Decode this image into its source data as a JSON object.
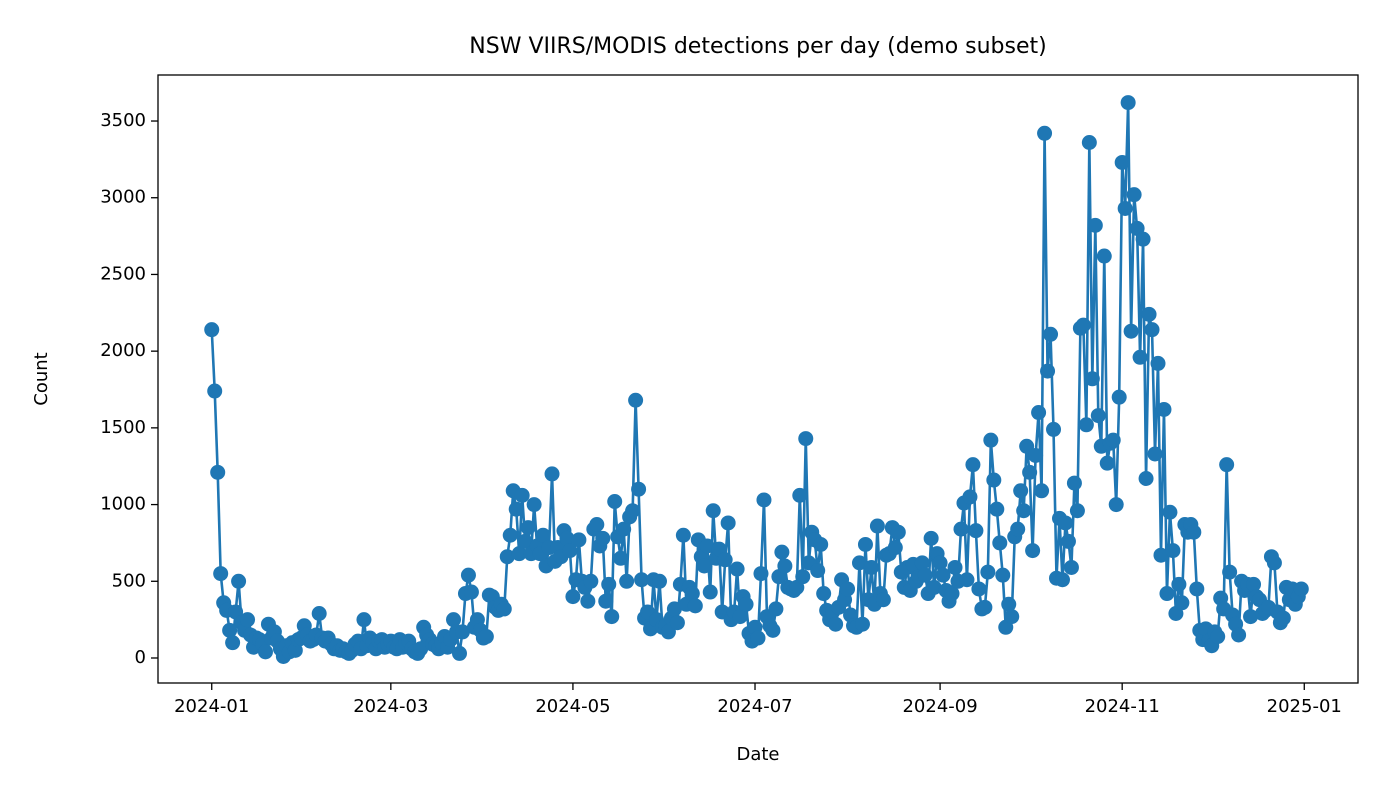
{
  "chart_data": {
    "type": "line",
    "title": "NSW VIIRS/MODIS detections per day (demo subset)",
    "xlabel": "Date",
    "ylabel": "Count",
    "color": "#1f77b4",
    "x": [
      "2024-01-01",
      "2024-01-02",
      "2024-01-03",
      "2024-01-04",
      "2024-01-05",
      "2024-01-06",
      "2024-01-07",
      "2024-01-08",
      "2024-01-09",
      "2024-01-10",
      "2024-01-11",
      "2024-01-12",
      "2024-01-13",
      "2024-01-14",
      "2024-01-15",
      "2024-01-16",
      "2024-01-17",
      "2024-01-18",
      "2024-01-19",
      "2024-01-20",
      "2024-01-21",
      "2024-01-22",
      "2024-01-23",
      "2024-01-24",
      "2024-01-25",
      "2024-01-26",
      "2024-01-27",
      "2024-01-28",
      "2024-01-29",
      "2024-01-30",
      "2024-01-31",
      "2024-02-01",
      "2024-02-02",
      "2024-02-03",
      "2024-02-04",
      "2024-02-05",
      "2024-02-06",
      "2024-02-07",
      "2024-02-08",
      "2024-02-09",
      "2024-02-10",
      "2024-02-11",
      "2024-02-12",
      "2024-02-13",
      "2024-02-14",
      "2024-02-15",
      "2024-02-16",
      "2024-02-17",
      "2024-02-18",
      "2024-02-19",
      "2024-02-20",
      "2024-02-21",
      "2024-02-22",
      "2024-02-23",
      "2024-02-24",
      "2024-02-25",
      "2024-02-26",
      "2024-02-27",
      "2024-02-28",
      "2024-02-29",
      "2024-03-01",
      "2024-03-02",
      "2024-03-03",
      "2024-03-04",
      "2024-03-05",
      "2024-03-06",
      "2024-03-07",
      "2024-03-08",
      "2024-03-09",
      "2024-03-10",
      "2024-03-11",
      "2024-03-12",
      "2024-03-13",
      "2024-03-14",
      "2024-03-15",
      "2024-03-16",
      "2024-03-17",
      "2024-03-18",
      "2024-03-19",
      "2024-03-20",
      "2024-03-21",
      "2024-03-22",
      "2024-03-23",
      "2024-03-24",
      "2024-03-25",
      "2024-03-26",
      "2024-03-27",
      "2024-03-28",
      "2024-03-29",
      "2024-03-30",
      "2024-03-31",
      "2024-04-01",
      "2024-04-02",
      "2024-04-03",
      "2024-04-04",
      "2024-04-05",
      "2024-04-06",
      "2024-04-07",
      "2024-04-08",
      "2024-04-09",
      "2024-04-10",
      "2024-04-11",
      "2024-04-12",
      "2024-04-13",
      "2024-04-14",
      "2024-04-15",
      "2024-04-16",
      "2024-04-17",
      "2024-04-18",
      "2024-04-19",
      "2024-04-20",
      "2024-04-21",
      "2024-04-22",
      "2024-04-23",
      "2024-04-24",
      "2024-04-25",
      "2024-04-26",
      "2024-04-27",
      "2024-04-28",
      "2024-04-29",
      "2024-04-30",
      "2024-05-01",
      "2024-05-02",
      "2024-05-03",
      "2024-05-04",
      "2024-05-05",
      "2024-05-06",
      "2024-05-07",
      "2024-05-08",
      "2024-05-09",
      "2024-05-10",
      "2024-05-11",
      "2024-05-12",
      "2024-05-13",
      "2024-05-14",
      "2024-05-15",
      "2024-05-16",
      "2024-05-17",
      "2024-05-18",
      "2024-05-19",
      "2024-05-20",
      "2024-05-21",
      "2024-05-22",
      "2024-05-23",
      "2024-05-24",
      "2024-05-25",
      "2024-05-26",
      "2024-05-27",
      "2024-05-28",
      "2024-05-29",
      "2024-05-30",
      "2024-05-31",
      "2024-06-01",
      "2024-06-02",
      "2024-06-03",
      "2024-06-04",
      "2024-06-05",
      "2024-06-06",
      "2024-06-07",
      "2024-06-08",
      "2024-06-09",
      "2024-06-10",
      "2024-06-11",
      "2024-06-12",
      "2024-06-13",
      "2024-06-14",
      "2024-06-15",
      "2024-06-16",
      "2024-06-17",
      "2024-06-18",
      "2024-06-19",
      "2024-06-20",
      "2024-06-21",
      "2024-06-22",
      "2024-06-23",
      "2024-06-24",
      "2024-06-25",
      "2024-06-26",
      "2024-06-27",
      "2024-06-28",
      "2024-06-29",
      "2024-06-30",
      "2024-07-01",
      "2024-07-02",
      "2024-07-03",
      "2024-07-04",
      "2024-07-05",
      "2024-07-06",
      "2024-07-07",
      "2024-07-08",
      "2024-07-09",
      "2024-07-10",
      "2024-07-11",
      "2024-07-12",
      "2024-07-13",
      "2024-07-14",
      "2024-07-15",
      "2024-07-16",
      "2024-07-17",
      "2024-07-18",
      "2024-07-19",
      "2024-07-20",
      "2024-07-21",
      "2024-07-22",
      "2024-07-23",
      "2024-07-24",
      "2024-07-25",
      "2024-07-26",
      "2024-07-27",
      "2024-07-28",
      "2024-07-29",
      "2024-07-30",
      "2024-07-31",
      "2024-08-01",
      "2024-08-02",
      "2024-08-03",
      "2024-08-04",
      "2024-08-05",
      "2024-08-06",
      "2024-08-07",
      "2024-08-08",
      "2024-08-09",
      "2024-08-10",
      "2024-08-11",
      "2024-08-12",
      "2024-08-13",
      "2024-08-14",
      "2024-08-15",
      "2024-08-16",
      "2024-08-17",
      "2024-08-18",
      "2024-08-19",
      "2024-08-20",
      "2024-08-21",
      "2024-08-22",
      "2024-08-23",
      "2024-08-24",
      "2024-08-25",
      "2024-08-26",
      "2024-08-27",
      "2024-08-28",
      "2024-08-29",
      "2024-08-30",
      "2024-08-31",
      "2024-09-01",
      "2024-09-02",
      "2024-09-03",
      "2024-09-04",
      "2024-09-05",
      "2024-09-06",
      "2024-09-07",
      "2024-09-08",
      "2024-09-09",
      "2024-09-10",
      "2024-09-11",
      "2024-09-12",
      "2024-09-13",
      "2024-09-14",
      "2024-09-15",
      "2024-09-16",
      "2024-09-17",
      "2024-09-18",
      "2024-09-19",
      "2024-09-20",
      "2024-09-21",
      "2024-09-22",
      "2024-09-23",
      "2024-09-24",
      "2024-09-25",
      "2024-09-26",
      "2024-09-27",
      "2024-09-28",
      "2024-09-29",
      "2024-09-30",
      "2024-10-01",
      "2024-10-02",
      "2024-10-03",
      "2024-10-04",
      "2024-10-05",
      "2024-10-06",
      "2024-10-07",
      "2024-10-08",
      "2024-10-09",
      "2024-10-10",
      "2024-10-11",
      "2024-10-12",
      "2024-10-13",
      "2024-10-14",
      "2024-10-15",
      "2024-10-16",
      "2024-10-17",
      "2024-10-18",
      "2024-10-19",
      "2024-10-20",
      "2024-10-21",
      "2024-10-22",
      "2024-10-23",
      "2024-10-24",
      "2024-10-25",
      "2024-10-26",
      "2024-10-27",
      "2024-10-28",
      "2024-10-29",
      "2024-10-30",
      "2024-10-31",
      "2024-11-01",
      "2024-11-02",
      "2024-11-03",
      "2024-11-04",
      "2024-11-05",
      "2024-11-06",
      "2024-11-07",
      "2024-11-08",
      "2024-11-09",
      "2024-11-10",
      "2024-11-11",
      "2024-11-12",
      "2024-11-13",
      "2024-11-14",
      "2024-11-15",
      "2024-11-16",
      "2024-11-17",
      "2024-11-18",
      "2024-11-19",
      "2024-11-20",
      "2024-11-21",
      "2024-11-22",
      "2024-11-23",
      "2024-11-24",
      "2024-11-25",
      "2024-11-26",
      "2024-11-27",
      "2024-11-28",
      "2024-11-29",
      "2024-11-30",
      "2024-12-01",
      "2024-12-02",
      "2024-12-03",
      "2024-12-04",
      "2024-12-05",
      "2024-12-06",
      "2024-12-07",
      "2024-12-08",
      "2024-12-09",
      "2024-12-10",
      "2024-12-11",
      "2024-12-12",
      "2024-12-13",
      "2024-12-14",
      "2024-12-15",
      "2024-12-16",
      "2024-12-17",
      "2024-12-18",
      "2024-12-19",
      "2024-12-20",
      "2024-12-21",
      "2024-12-22",
      "2024-12-23",
      "2024-12-24",
      "2024-12-25",
      "2024-12-26",
      "2024-12-27",
      "2024-12-28",
      "2024-12-29",
      "2024-12-30",
      "2024-12-31"
    ],
    "values": [
      2140,
      1740,
      1210,
      550,
      360,
      310,
      180,
      100,
      300,
      500,
      230,
      180,
      250,
      150,
      70,
      130,
      120,
      90,
      40,
      220,
      130,
      170,
      110,
      60,
      10,
      80,
      40,
      100,
      50,
      120,
      130,
      210,
      150,
      110,
      120,
      150,
      290,
      130,
      110,
      130,
      90,
      60,
      80,
      50,
      60,
      40,
      30,
      50,
      90,
      110,
      60,
      250,
      80,
      130,
      100,
      60,
      110,
      120,
      70,
      90,
      110,
      70,
      60,
      120,
      70,
      100,
      110,
      60,
      40,
      30,
      60,
      200,
      150,
      120,
      90,
      80,
      60,
      100,
      140,
      70,
      120,
      250,
      170,
      30,
      170,
      420,
      540,
      430,
      200,
      250,
      180,
      130,
      140,
      410,
      400,
      330,
      310,
      350,
      320,
      660,
      800,
      1090,
      970,
      680,
      1060,
      760,
      850,
      680,
      1000,
      730,
      680,
      800,
      600,
      720,
      1200,
      630,
      720,
      660,
      830,
      780,
      700,
      400,
      510,
      770,
      500,
      460,
      370,
      500,
      840,
      870,
      730,
      780,
      370,
      480,
      270,
      1020,
      790,
      650,
      840,
      500,
      920,
      960,
      1680,
      1100,
      510,
      260,
      300,
      190,
      510,
      250,
      500,
      200,
      210,
      170,
      260,
      320,
      230,
      480,
      800,
      350,
      460,
      420,
      340,
      770,
      660,
      600,
      730,
      430,
      960,
      650,
      710,
      300,
      640,
      880,
      250,
      300,
      580,
      270,
      400,
      350,
      160,
      110,
      200,
      130,
      550,
      1030,
      270,
      210,
      180,
      320,
      530,
      690,
      600,
      460,
      450,
      440,
      460,
      1060,
      530,
      1430,
      620,
      820,
      770,
      570,
      740,
      420,
      310,
      250,
      300,
      220,
      330,
      510,
      380,
      450,
      280,
      210,
      200,
      620,
      220,
      740,
      380,
      590,
      350,
      860,
      420,
      380,
      670,
      680,
      850,
      720,
      820,
      560,
      460,
      590,
      440,
      610,
      500,
      530,
      620,
      540,
      420,
      780,
      460,
      680,
      620,
      540,
      440,
      370,
      420,
      590,
      500,
      840,
      1010,
      510,
      1050,
      1260,
      830,
      450,
      320,
      330,
      560,
      1420,
      1160,
      970,
      750,
      540,
      200,
      350,
      270,
      790,
      840,
      1090,
      960,
      1380,
      1210,
      700,
      1320,
      1600,
      1090,
      3420,
      1870,
      2110,
      1490,
      520,
      910,
      510,
      880,
      760,
      590,
      1140,
      960,
      2150,
      2170,
      1520,
      3360,
      1820,
      2820,
      1580,
      1380,
      2620,
      1270,
      1400,
      1420,
      1000,
      1700,
      3230,
      2930,
      3620,
      2130,
      3020,
      2800,
      1960,
      2730,
      1170,
      2240,
      2140,
      1330,
      1920,
      670,
      1620,
      420,
      950,
      700,
      290,
      480,
      360,
      870,
      820,
      870,
      820,
      450,
      180,
      120,
      190,
      110,
      80,
      170,
      140,
      390,
      320,
      1260,
      560,
      280,
      220,
      150,
      500,
      440,
      480,
      270,
      480,
      400,
      380,
      290,
      310,
      330,
      660,
      620,
      300,
      230,
      260,
      460,
      380,
      450,
      350,
      400,
      450
    ],
    "xlim": [
      "2023-12-14",
      "2025-01-19"
    ],
    "xticks": [
      "2024-01",
      "2024-03",
      "2024-05",
      "2024-07",
      "2024-09",
      "2024-11",
      "2025-01"
    ],
    "ylim": [
      -163,
      3800
    ],
    "yticks": [
      0,
      500,
      1000,
      1500,
      2000,
      2500,
      3000,
      3500
    ],
    "grid": false
  }
}
